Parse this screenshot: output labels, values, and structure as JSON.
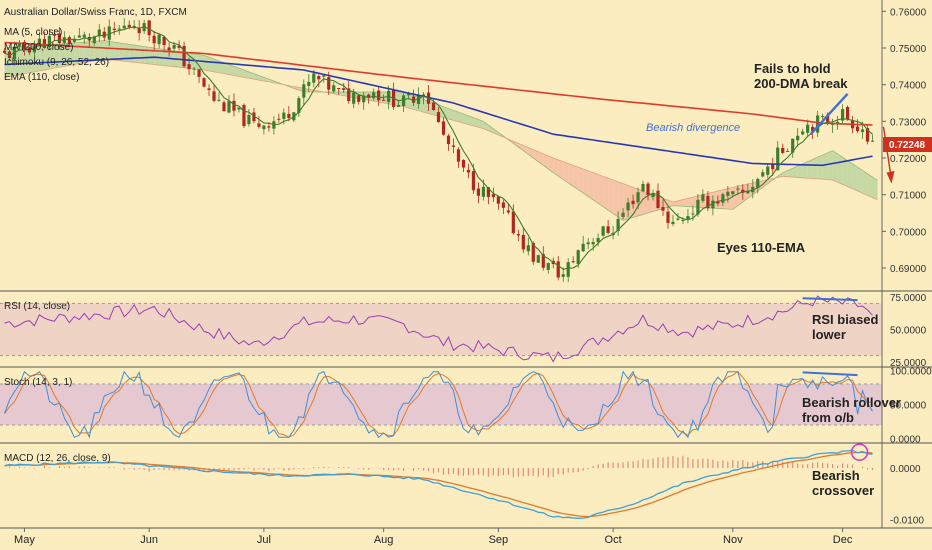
{
  "title": "Australian Dollar/Swiss Franc, 1D, FXCM",
  "indicators": [
    "MA (5, close)",
    "MA (200, close)",
    "Ichimoku (9, 26, 52, 26)",
    "EMA (110, close)"
  ],
  "price_tag": "0.72248",
  "annotations": {
    "fails_1": "Fails to hold",
    "fails_2": "200-DMA break",
    "bearish_div": "Bearish divergence",
    "eyes_ema": "Eyes 110-EMA",
    "rsi_1": "RSI biased",
    "rsi_2": "lower",
    "stoch_1": "Bearish rollover",
    "stoch_2": "from o/b",
    "macd_1": "Bearish",
    "macd_2": "crossover"
  },
  "colors": {
    "background": "#fbedbf",
    "up": "#3e7d2c",
    "down": "#b3261e",
    "ma200": "#e03a2c",
    "ema110": "#2838b4",
    "ma5": "#3e7d2c",
    "cloud_bull": "#c6d9a4",
    "cloud_bear": "#f6c4a6",
    "rsi": "#9a40b4",
    "stoch_k": "#3f8fd8",
    "stoch_d": "#e07a2c",
    "macd": "#3fa0d8",
    "signal": "#e07a2c",
    "divergence": "#3f6fd8",
    "arrow": "#d0301e"
  },
  "chart_data": [
    {
      "type": "candlestick",
      "panel": "price",
      "x_ticks": [
        "May",
        "Jun",
        "Jul",
        "Aug",
        "Sep",
        "Oct",
        "Nov",
        "Dec"
      ],
      "y_ticks": [
        "0.76000",
        "0.75000",
        "0.74000",
        "0.73000",
        "0.72000",
        "0.71000",
        "0.70000",
        "0.69000"
      ],
      "ylim": [
        0.684,
        0.762
      ],
      "last_price": 0.72248,
      "series": [
        {
          "name": "MA (5, close)",
          "type": "line"
        },
        {
          "name": "MA (200, close)",
          "type": "line"
        },
        {
          "name": "EMA (110, close)",
          "type": "line"
        },
        {
          "name": "Ichimoku (9, 26, 52, 26)",
          "type": "cloud"
        }
      ]
    },
    {
      "type": "line",
      "panel": "rsi",
      "series": [
        {
          "name": "RSI (14, close)"
        }
      ],
      "y_ticks": [
        "75.0000",
        "50.0000",
        "25.0000"
      ],
      "ylim": [
        22,
        78
      ],
      "band": [
        30,
        70
      ]
    },
    {
      "type": "line",
      "panel": "stoch",
      "series": [
        {
          "name": "Stoch (14, 3, 1)"
        }
      ],
      "y_ticks": [
        "100.0000",
        "50.0000",
        "0.0000"
      ],
      "ylim": [
        -5,
        102
      ],
      "band": [
        20,
        80
      ]
    },
    {
      "type": "line",
      "panel": "macd",
      "series": [
        {
          "name": "MACD (12, 26, close, 9)"
        }
      ],
      "y_ticks": [
        "0.0000",
        "-0.0100"
      ],
      "ylim": [
        -0.0115,
        0.0045
      ]
    }
  ]
}
